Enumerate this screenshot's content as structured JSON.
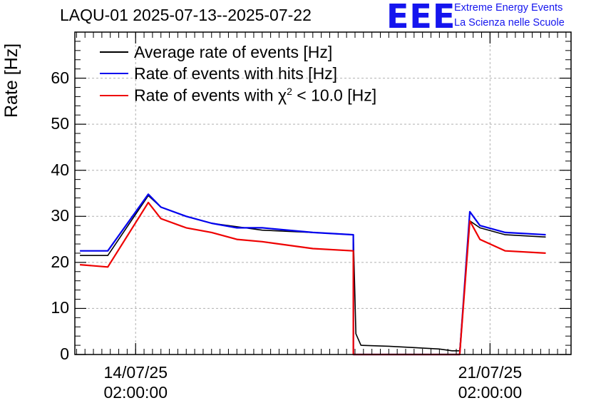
{
  "chart_data": {
    "type": "line",
    "title": "LAQU-01 2025-07-13--2025-07-22",
    "xlabel": "",
    "ylabel": "Rate [Hz]",
    "ylim": [
      0,
      70
    ],
    "yticks": [
      0,
      10,
      20,
      30,
      40,
      50,
      60
    ],
    "xticks": [
      {
        "t": 1.0,
        "date": "14/07/25",
        "time": "02:00:00"
      },
      {
        "t": 8.0,
        "date": "21/07/25",
        "time": "02:00:00"
      }
    ],
    "xlim": [
      -0.2,
      9.6
    ],
    "grid": true,
    "legend_position": "top-left",
    "series": [
      {
        "name": "Average rate of events [Hz]",
        "color": "#000000",
        "points": [
          [
            -0.1,
            21.5
          ],
          [
            0.45,
            21.5
          ],
          [
            1.25,
            34.5
          ],
          [
            1.5,
            32.0
          ],
          [
            2.0,
            30.0
          ],
          [
            2.5,
            28.5
          ],
          [
            3.5,
            27.0
          ],
          [
            4.5,
            26.5
          ],
          [
            5.3,
            26.0
          ],
          [
            5.35,
            4.5
          ],
          [
            5.45,
            2.0
          ],
          [
            6.0,
            1.8
          ],
          [
            6.5,
            1.5
          ],
          [
            7.0,
            1.2
          ],
          [
            7.25,
            0.8
          ],
          [
            7.4,
            0.8
          ],
          [
            7.6,
            29.0
          ],
          [
            7.8,
            27.5
          ],
          [
            8.3,
            26.0
          ],
          [
            9.1,
            25.5
          ]
        ]
      },
      {
        "name": "Rate of events with hits [Hz]",
        "color": "#0000ee",
        "points": [
          [
            -0.1,
            22.5
          ],
          [
            0.45,
            22.5
          ],
          [
            1.25,
            34.8
          ],
          [
            1.5,
            32.0
          ],
          [
            2.0,
            30.0
          ],
          [
            2.5,
            28.5
          ],
          [
            3.0,
            27.5
          ],
          [
            3.5,
            27.5
          ],
          [
            4.5,
            26.5
          ],
          [
            5.3,
            26.0
          ],
          [
            5.3,
            0
          ],
          [
            7.4,
            0
          ],
          [
            7.6,
            31.0
          ],
          [
            7.8,
            28.0
          ],
          [
            8.3,
            26.5
          ],
          [
            9.1,
            26.0
          ]
        ]
      },
      {
        "name": "Rate of events with χ2 < 10.0 [Hz]",
        "color": "#ee0000",
        "points": [
          [
            -0.1,
            19.5
          ],
          [
            0.45,
            19.0
          ],
          [
            1.25,
            33.0
          ],
          [
            1.5,
            29.5
          ],
          [
            2.0,
            27.5
          ],
          [
            2.5,
            26.5
          ],
          [
            3.0,
            25.0
          ],
          [
            3.5,
            24.5
          ],
          [
            4.5,
            23.0
          ],
          [
            5.3,
            22.5
          ],
          [
            5.3,
            0
          ],
          [
            7.4,
            0
          ],
          [
            7.6,
            29.0
          ],
          [
            7.8,
            25.0
          ],
          [
            8.3,
            22.5
          ],
          [
            9.1,
            22.0
          ]
        ]
      }
    ]
  },
  "logo": {
    "text": "EEE",
    "line1": "Extreme Energy Events",
    "line2": "La Scienza nelle Scuole"
  },
  "legend": {
    "item1": "Average rate of events [Hz]",
    "item2": "Rate of events with hits [Hz]",
    "item3_prefix": "Rate of events with χ",
    "item3_sup": "2",
    "item3_suffix": " < 10.0 [Hz]"
  }
}
